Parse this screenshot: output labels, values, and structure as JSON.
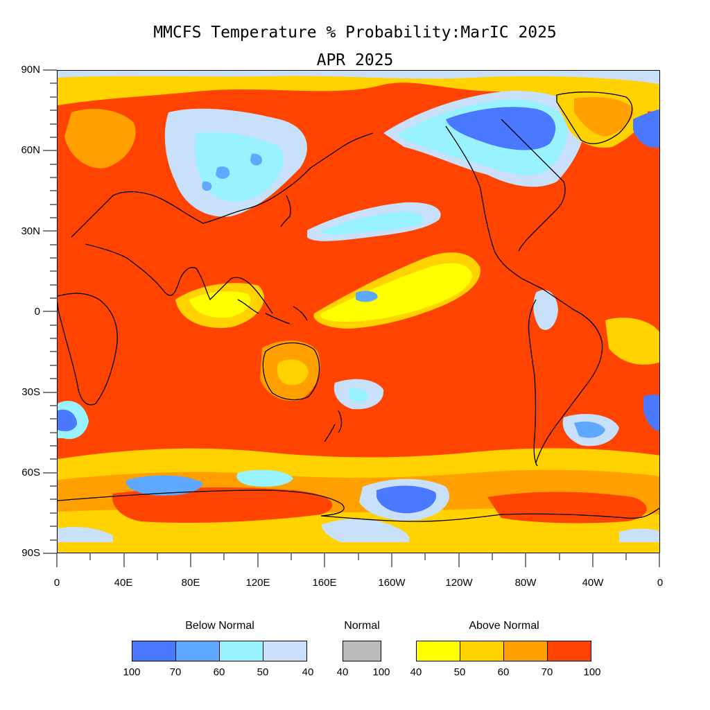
{
  "title": "MMCFS Temperature % Probability:MarIC 2025",
  "subtitle": "APR 2025",
  "lat_labels": [
    "90N",
    "60N",
    "30N",
    "0",
    "30S",
    "60S",
    "90S"
  ],
  "lon_labels": [
    "0",
    "40E",
    "80E",
    "120E",
    "160E",
    "160W",
    "120W",
    "80W",
    "40W",
    "0"
  ],
  "legend": {
    "below": {
      "label": "Below Normal",
      "colors": [
        "#4a78ff",
        "#5fa8ff",
        "#98f2ff",
        "#c8e0fa"
      ],
      "ticks": [
        "100",
        "70",
        "60",
        "50",
        "40"
      ]
    },
    "normal": {
      "label": "Normal",
      "colors": [
        "#bbbbbb"
      ],
      "ticks": [
        "40",
        "100"
      ]
    },
    "above": {
      "label": "Above Normal",
      "colors": [
        "#ffff00",
        "#ffd200",
        "#ffa000",
        "#fe4400"
      ],
      "ticks": [
        "40",
        "50",
        "60",
        "70",
        "100"
      ]
    }
  },
  "colors": {
    "map_base": "#fe4400",
    "coastline": "#000000"
  }
}
